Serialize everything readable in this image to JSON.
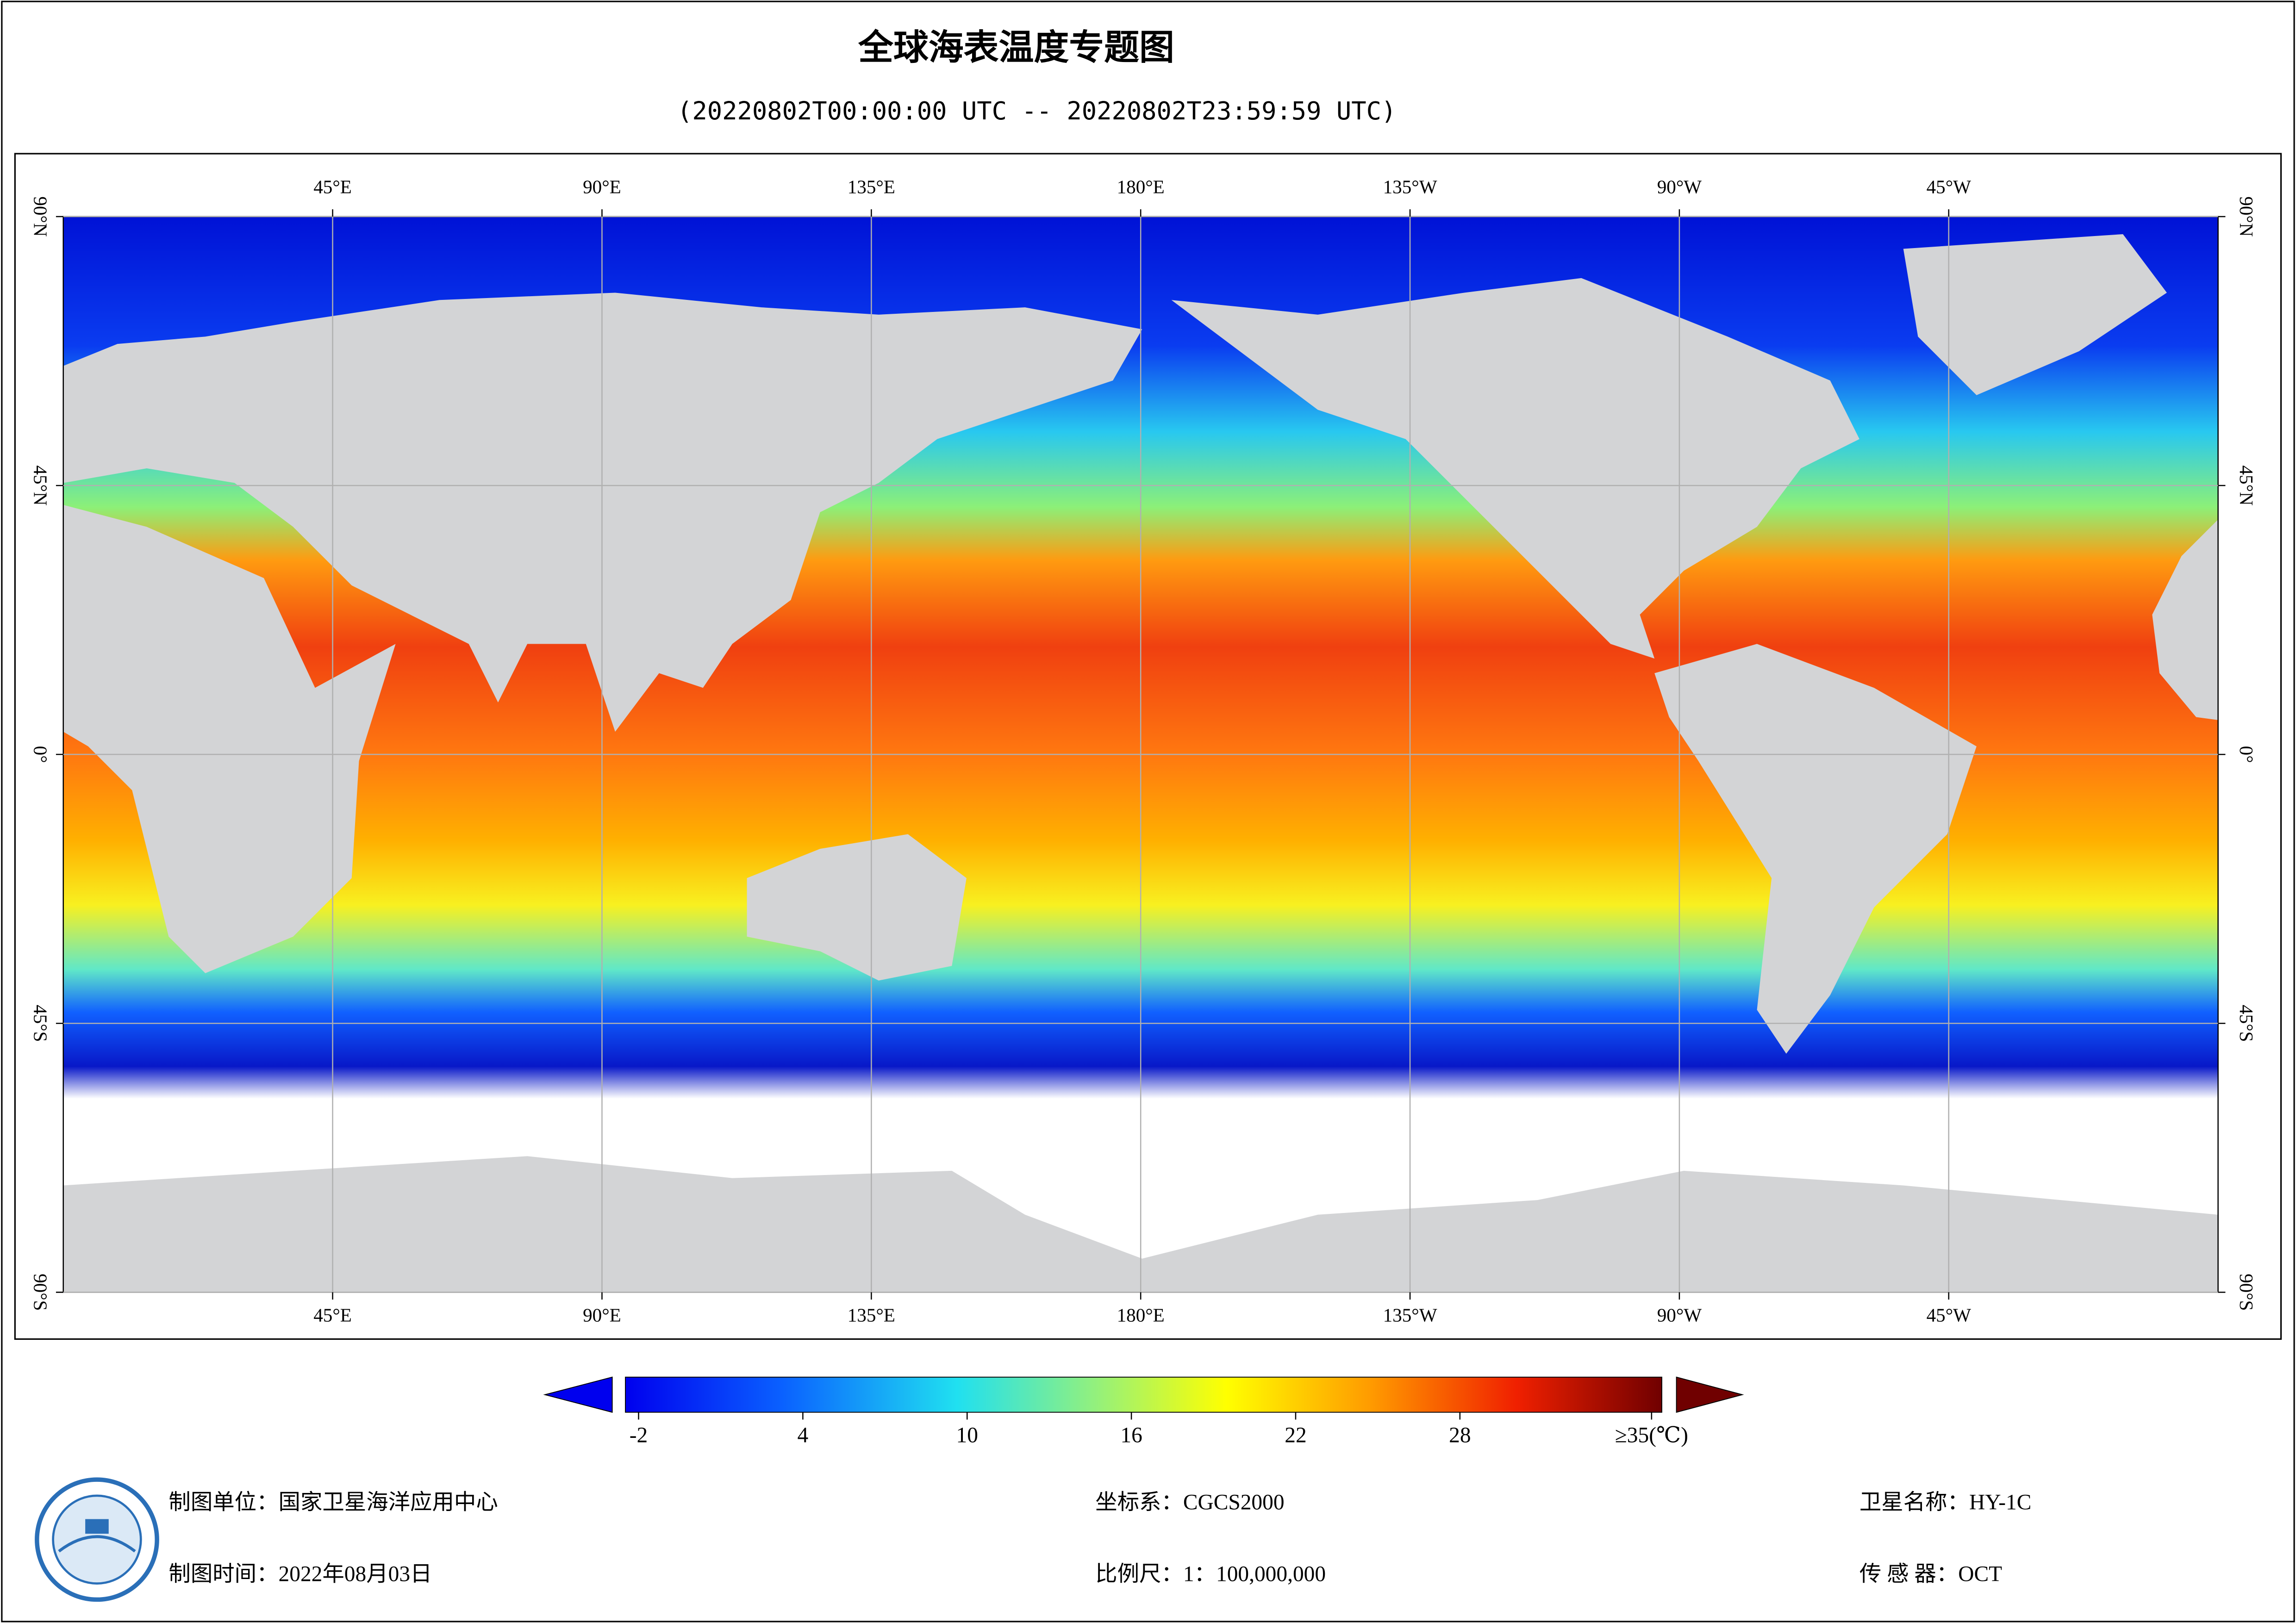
{
  "header": {
    "title": "全球海表温度专题图",
    "subtitle": "(20220802T00:00:00 UTC -- 20220802T23:59:59 UTC)"
  },
  "map": {
    "lon_lim": [
      0,
      360
    ],
    "lat_lim": [
      -90,
      90
    ],
    "lon_ticks": [
      {
        "value": 45,
        "label": "45°E"
      },
      {
        "value": 90,
        "label": "90°E"
      },
      {
        "value": 135,
        "label": "135°E"
      },
      {
        "value": 180,
        "label": "180°E"
      },
      {
        "value": 225,
        "label": "135°W"
      },
      {
        "value": 270,
        "label": "90°W"
      },
      {
        "value": 315,
        "label": "45°W"
      }
    ],
    "lat_ticks": [
      {
        "value": 90,
        "label": "90°N"
      },
      {
        "value": 45,
        "label": "45°N"
      },
      {
        "value": 0,
        "label": "0°"
      },
      {
        "value": -45,
        "label": "45°S"
      },
      {
        "value": -90,
        "label": "90°S"
      }
    ]
  },
  "colorbar": {
    "lim": [
      -2,
      35
    ],
    "ticks": [
      -2,
      4,
      10,
      16,
      22,
      28,
      {
        "value": 35,
        "label": "≥35(℃)"
      }
    ]
  },
  "footer": {
    "unit": "制图单位：国家卫星海洋应用中心",
    "date": "制图时间：2022年08月03日",
    "crs": "坐标系：CGCS2000",
    "scale": "比例尺：1：100,000,000",
    "satellite": "卫星名称：HY-1C",
    "sensor": "传 感 器：OCT"
  }
}
